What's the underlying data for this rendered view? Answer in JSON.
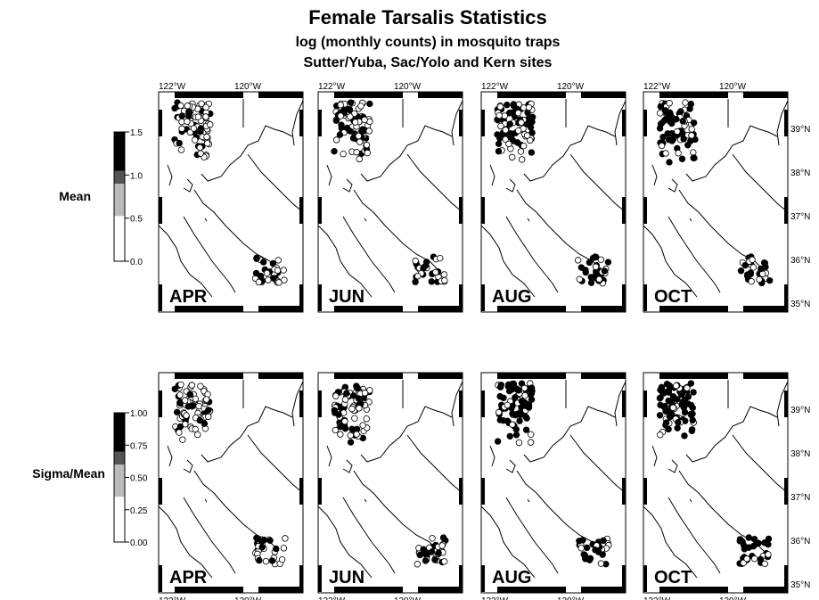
{
  "title": "Female Tarsalis Statistics",
  "subtitle": [
    "log (monthly counts) in mosquito traps",
    "Sutter/Yuba, Sac/Yolo and Kern sites"
  ],
  "rows": [
    {
      "label": "Mean",
      "colorbar_ticks": [
        "1.5",
        "1.0",
        "0.5",
        "0.0"
      ],
      "panels": [
        "APR",
        "JUN",
        "AUG",
        "OCT"
      ]
    },
    {
      "label": "Sigma/Mean",
      "colorbar_ticks": [
        "1.00",
        "0.75",
        "0.50",
        "0.25",
        "0.00"
      ],
      "panels": [
        "APR",
        "JUN",
        "AUG",
        "OCT"
      ]
    }
  ],
  "lon_labels": [
    "122°W",
    "120°W"
  ],
  "lat_labels": [
    "39°N",
    "38°N",
    "37°N",
    "36°N",
    "35°N"
  ]
}
